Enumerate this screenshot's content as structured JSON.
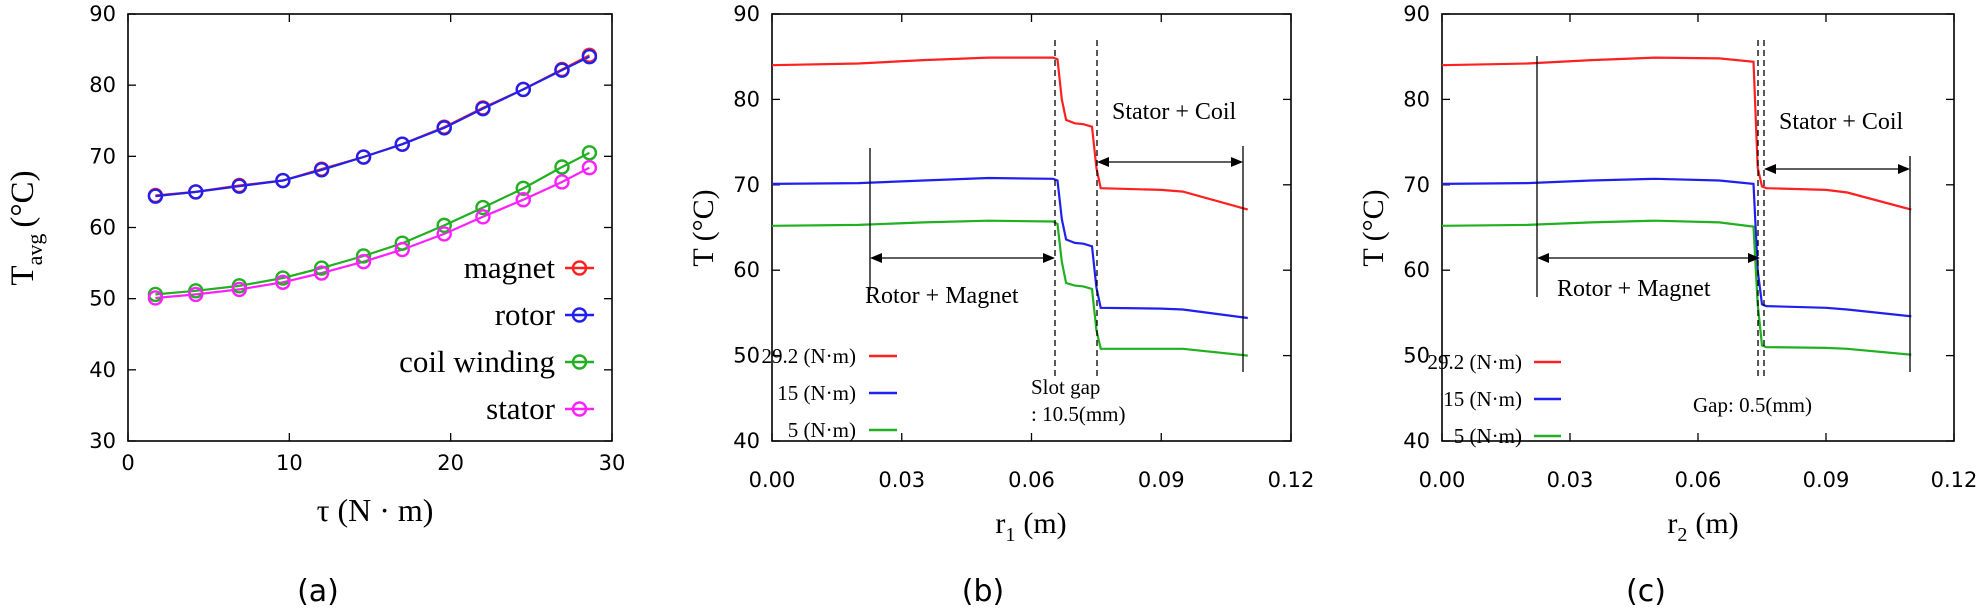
{
  "chart_data": [
    {
      "type": "line",
      "panel_label": "(a)",
      "xlabel_symbol": "τ",
      "xlabel_unit": "(N · m)",
      "ylabel_main": "T",
      "ylabel_sub": "avg",
      "ylabel_unit": "(°C)",
      "xlim": [
        0,
        30
      ],
      "ylim": [
        30,
        90
      ],
      "xticks": [
        "0",
        "10",
        "20",
        "30"
      ],
      "yticks": [
        "30",
        "40",
        "50",
        "60",
        "70",
        "80",
        "90"
      ],
      "x": [
        1.7,
        4.2,
        6.9,
        9.6,
        12.0,
        14.6,
        17.0,
        19.6,
        22.0,
        24.5,
        26.9,
        28.6
      ],
      "series": [
        {
          "name": "magnet",
          "color": "#ff2020",
          "values": [
            64.5,
            65.0,
            65.9,
            66.6,
            68.2,
            69.9,
            71.7,
            74.1,
            76.8,
            79.4,
            82.2,
            84.2
          ]
        },
        {
          "name": "rotor",
          "color": "#2020ee",
          "values": [
            64.4,
            65.0,
            65.8,
            66.6,
            68.1,
            69.9,
            71.7,
            74.0,
            76.7,
            79.4,
            82.1,
            84.0
          ]
        },
        {
          "name": "coil winding",
          "color": "#20b020",
          "values": [
            50.6,
            51.1,
            51.8,
            52.9,
            54.3,
            56.0,
            57.8,
            60.3,
            62.8,
            65.5,
            68.5,
            70.5
          ]
        },
        {
          "name": "stator",
          "color": "#ff20ff",
          "values": [
            50.1,
            50.6,
            51.3,
            52.3,
            53.6,
            55.2,
            56.9,
            59.1,
            61.5,
            63.9,
            66.4,
            68.4
          ]
        }
      ]
    },
    {
      "type": "line",
      "panel_label": "(b)",
      "xlabel_symbol": "r",
      "xlabel_sub": "1",
      "xlabel_unit": "(m)",
      "ylabel": "T (°C)",
      "xlim": [
        0,
        0.12
      ],
      "ylim": [
        40,
        90
      ],
      "xticks": [
        "0.00",
        "0.03",
        "0.06",
        "0.09",
        "0.12"
      ],
      "yticks": [
        "40",
        "50",
        "60",
        "70",
        "80",
        "90"
      ],
      "annotations": {
        "rotor_magnet": "Rotor + Magnet",
        "stator_coil": "Stator + Coil",
        "gap_line1": "Slot gap",
        "gap_line2": ": 10.5(mm)"
      },
      "series": [
        {
          "name": "29.2 (N·m)",
          "color": "#ff2020",
          "x": [
            0,
            0.02,
            0.035,
            0.05,
            0.065,
            0.066,
            0.067,
            0.068,
            0.07,
            0.072,
            0.074,
            0.075,
            0.076,
            0.09,
            0.095,
            0.11
          ],
          "values": [
            84,
            84.2,
            84.6,
            84.9,
            84.9,
            84.7,
            80,
            77.6,
            77.2,
            77.1,
            76.8,
            72,
            69.6,
            69.4,
            69.2,
            67.1
          ]
        },
        {
          "name": "15 (N·m)",
          "color": "#2020ee",
          "x": [
            0,
            0.02,
            0.035,
            0.05,
            0.065,
            0.066,
            0.067,
            0.068,
            0.07,
            0.072,
            0.074,
            0.075,
            0.076,
            0.09,
            0.095,
            0.11
          ],
          "values": [
            70.1,
            70.2,
            70.5,
            70.8,
            70.7,
            70.5,
            66,
            63.6,
            63.2,
            63.1,
            62.8,
            58,
            55.6,
            55.5,
            55.4,
            54.4
          ]
        },
        {
          "name": "5 (N·m)",
          "color": "#20b020",
          "x": [
            0,
            0.02,
            0.035,
            0.05,
            0.065,
            0.066,
            0.067,
            0.068,
            0.07,
            0.072,
            0.074,
            0.075,
            0.076,
            0.09,
            0.095,
            0.11
          ],
          "values": [
            65.2,
            65.3,
            65.6,
            65.8,
            65.7,
            65.4,
            61,
            58.5,
            58.2,
            58.1,
            57.8,
            53,
            50.8,
            50.8,
            50.8,
            50.0
          ]
        }
      ]
    },
    {
      "type": "line",
      "panel_label": "(c)",
      "xlabel_symbol": "r",
      "xlabel_sub": "2",
      "xlabel_unit": "(m)",
      "ylabel": "T (°C)",
      "xlim": [
        0,
        0.12
      ],
      "ylim": [
        40,
        90
      ],
      "xticks": [
        "0.00",
        "0.03",
        "0.06",
        "0.09",
        "0.12"
      ],
      "yticks": [
        "40",
        "50",
        "60",
        "70",
        "80",
        "90"
      ],
      "annotations": {
        "rotor_magnet": "Rotor + Magnet",
        "stator_coil": "Stator + Coil",
        "gap_line1": "Gap: 0.5(mm)"
      },
      "series": [
        {
          "name": "29.2 (N·m)",
          "color": "#ff2020",
          "x": [
            0,
            0.02,
            0.035,
            0.05,
            0.065,
            0.073,
            0.074,
            0.075,
            0.076,
            0.09,
            0.095,
            0.11
          ],
          "values": [
            84,
            84.2,
            84.6,
            84.9,
            84.8,
            84.4,
            72,
            69.8,
            69.6,
            69.4,
            69.1,
            67.1
          ]
        },
        {
          "name": "15 (N·m)",
          "color": "#2020ee",
          "x": [
            0,
            0.02,
            0.035,
            0.05,
            0.065,
            0.073,
            0.074,
            0.075,
            0.076,
            0.09,
            0.095,
            0.11
          ],
          "values": [
            70.1,
            70.2,
            70.5,
            70.7,
            70.5,
            70.1,
            60,
            56.0,
            55.8,
            55.6,
            55.4,
            54.6
          ]
        },
        {
          "name": "5 (N·m)",
          "color": "#20b020",
          "x": [
            0,
            0.02,
            0.035,
            0.05,
            0.065,
            0.073,
            0.074,
            0.075,
            0.076,
            0.09,
            0.095,
            0.11
          ],
          "values": [
            65.2,
            65.3,
            65.6,
            65.8,
            65.6,
            65.1,
            56,
            51.2,
            51.0,
            50.9,
            50.8,
            50.1
          ]
        }
      ]
    }
  ]
}
